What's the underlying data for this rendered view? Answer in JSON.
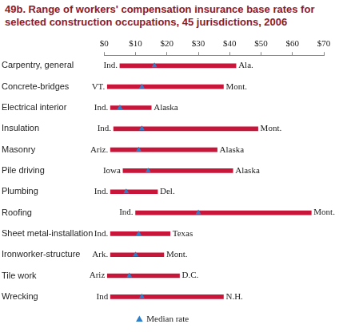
{
  "chart_data": {
    "type": "bar",
    "orientation": "horizontal",
    "title": "49b. Range of workers' compensation insurance base rates for selected construction occupations, 45 jurisdictions, 2006",
    "categories": [
      "Carpentry, general",
      "Concrete-bridges",
      "Electrical interior",
      "Insulation",
      "Masonry",
      "Pile driving",
      "Plumbing",
      "Roofing",
      "Sheet metal-installation",
      "Ironworker-structure",
      "Tile work",
      "Wrecking"
    ],
    "ranges": [
      [
        5,
        42
      ],
      [
        1,
        38
      ],
      [
        2,
        15
      ],
      [
        3,
        49
      ],
      [
        2,
        36
      ],
      [
        6,
        41
      ],
      [
        2,
        17
      ],
      [
        10,
        66
      ],
      [
        2,
        21
      ],
      [
        2,
        19
      ],
      [
        1,
        24
      ],
      [
        2,
        38
      ]
    ],
    "range_labels": [
      [
        "Ind.",
        "Ala."
      ],
      [
        "VT.",
        "Mont."
      ],
      [
        "Ind.",
        "Alaska"
      ],
      [
        "Ind.",
        "Mont."
      ],
      [
        "Ariz.",
        "Alaska"
      ],
      [
        "Iowa",
        "Alaska"
      ],
      [
        "Ind.",
        "Del."
      ],
      [
        "Ind.",
        "Mont."
      ],
      [
        "Ind.",
        "Texas"
      ],
      [
        "Ark.",
        "Mont."
      ],
      [
        "Ariz",
        "D.C."
      ],
      [
        "Ind",
        "N.H."
      ]
    ],
    "color": "#c8163a",
    "series": [
      {
        "name": "Median rate",
        "type": "scatter",
        "marker": "triangle",
        "color": "#2f7fc8",
        "values": [
          16,
          12,
          5,
          12,
          11,
          14,
          7,
          30,
          11,
          10,
          8,
          12
        ]
      }
    ],
    "xlim": [
      0,
      70
    ],
    "xticks": [
      {
        "value": 0,
        "label": "$0"
      },
      {
        "value": 10,
        "label": "$10"
      },
      {
        "value": 20,
        "label": "$20"
      },
      {
        "value": 30,
        "label": "$30"
      },
      {
        "value": 40,
        "label": "$40"
      },
      {
        "value": 50,
        "label": "$50"
      },
      {
        "value": 60,
        "label": "$60"
      },
      {
        "value": 70,
        "label": "$70"
      }
    ],
    "grid": false,
    "legend": "bottom"
  }
}
